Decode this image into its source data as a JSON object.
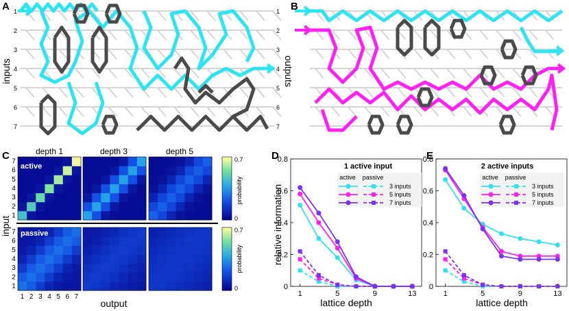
{
  "panels": {
    "a": "A",
    "b": "B",
    "c": "C",
    "d": "D",
    "e": "E"
  },
  "lattice": {
    "row_labels": [
      "1",
      "2",
      "3",
      "4",
      "5",
      "6",
      "7"
    ],
    "inputs_label": "inputs",
    "outputs_label": "outputs",
    "colors": {
      "grid": "#d4d4d4",
      "cyan": "#2fe3f0",
      "magenta": "#ff22f0",
      "gray": "#4a4a4a"
    }
  },
  "heatmaps": {
    "depth_titles": [
      "depth 1",
      "depth 3",
      "depth 5"
    ],
    "active_tag": "active",
    "passive_tag": "passive",
    "ylabel": "input",
    "xlabel": "output",
    "ticks": [
      "1",
      "2",
      "3",
      "4",
      "5",
      "6",
      "7"
    ],
    "colorbar_max": "0.7",
    "colorbar_min": "0",
    "colorbar_label": "probability"
  },
  "chart_data": [
    {
      "type": "line",
      "title": "1 active input",
      "xlabel": "lattice depth",
      "ylabel": "relative information",
      "x": [
        1,
        3,
        5,
        7,
        9,
        11,
        13
      ],
      "xticks": [
        "1",
        "5",
        "9",
        "13"
      ],
      "yticks": [
        "0",
        "0.2",
        "0.4",
        "0.6",
        "0.8"
      ],
      "xlim": [
        0,
        14
      ],
      "ylim": [
        0,
        0.8
      ],
      "legend_headers": [
        "active",
        "passive"
      ],
      "series": [
        {
          "name": "3 inputs",
          "color": "#35e0ee",
          "active": [
            0.51,
            0.3,
            0.18,
            0.04,
            0.0,
            0.0,
            0.0
          ],
          "passive": [
            0.1,
            0.03,
            0.0,
            0.0,
            0.0,
            0.0,
            0.0
          ]
        },
        {
          "name": "5 inputs",
          "color": "#ff22e6",
          "active": [
            0.58,
            0.4,
            0.24,
            0.05,
            0.0,
            0.0,
            0.0
          ],
          "passive": [
            0.17,
            0.05,
            0.01,
            0.0,
            0.0,
            0.0,
            0.0
          ]
        },
        {
          "name": "7 inputs",
          "color": "#7a32f0",
          "active": [
            0.62,
            0.46,
            0.28,
            0.06,
            0.0,
            0.0,
            0.0
          ],
          "passive": [
            0.22,
            0.07,
            0.01,
            0.0,
            0.0,
            0.0,
            0.0
          ]
        }
      ]
    },
    {
      "type": "line",
      "title": "2 active inputs",
      "xlabel": "lattice depth",
      "ylabel": "",
      "x": [
        1,
        3,
        5,
        7,
        9,
        11,
        13
      ],
      "xticks": [
        "1",
        "5",
        "9",
        "13"
      ],
      "yticks": [
        "0",
        "0.2",
        "0.4",
        "0.6",
        "0.8"
      ],
      "xlim": [
        0,
        14
      ],
      "ylim": [
        0,
        0.8
      ],
      "legend_headers": [
        "active",
        "passive"
      ],
      "series": [
        {
          "name": "3 inputs",
          "color": "#35e0ee",
          "active": [
            0.67,
            0.49,
            0.39,
            0.33,
            0.3,
            0.28,
            0.26
          ],
          "passive": [
            0.1,
            0.03,
            0.0,
            0.0,
            0.0,
            0.0,
            0.0
          ]
        },
        {
          "name": "5 inputs",
          "color": "#ff22e6",
          "active": [
            0.73,
            0.55,
            0.37,
            0.22,
            0.19,
            0.19,
            0.19
          ],
          "passive": [
            0.17,
            0.05,
            0.01,
            0.0,
            0.0,
            0.0,
            0.0
          ]
        },
        {
          "name": "7 inputs",
          "color": "#7a32f0",
          "active": [
            0.74,
            0.57,
            0.36,
            0.19,
            0.17,
            0.17,
            0.17
          ],
          "passive": [
            0.22,
            0.07,
            0.01,
            0.0,
            0.0,
            0.0,
            0.0
          ]
        }
      ]
    }
  ]
}
